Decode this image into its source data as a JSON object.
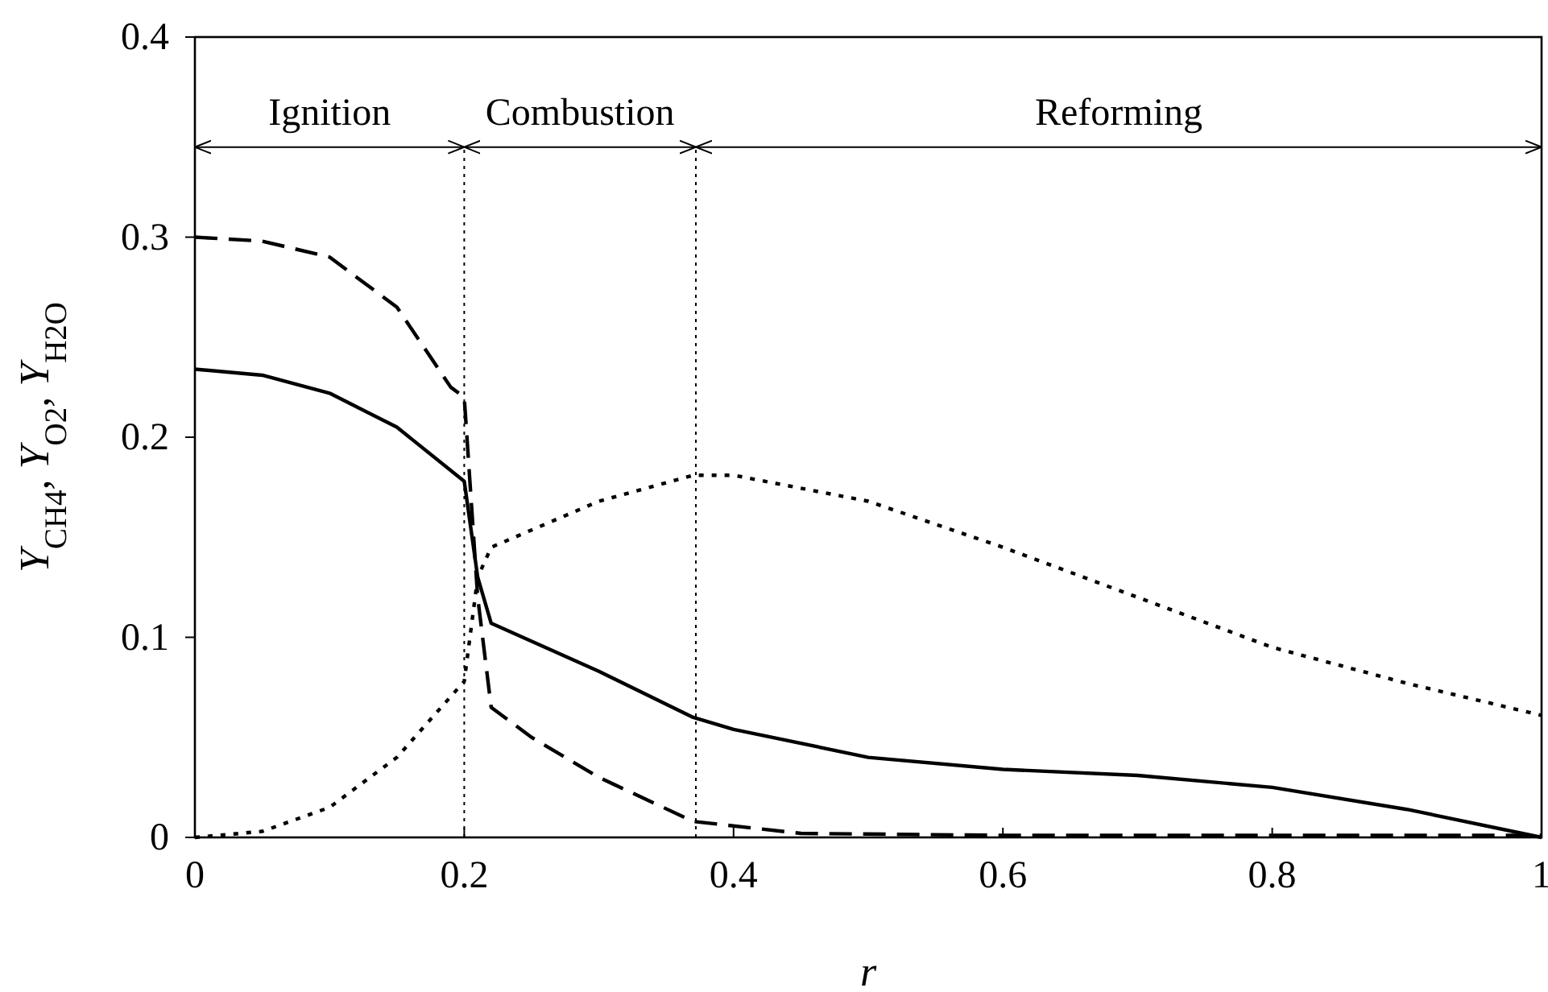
{
  "chart_data": {
    "type": "line",
    "xlabel": "r",
    "ylabel": "Y$_{CH4}$, Y$_{O2}$, Y$_{H2O}$",
    "xlim": [
      0,
      1
    ],
    "ylim": [
      0,
      0.4
    ],
    "xticks": [
      0,
      0.2,
      0.4,
      0.6,
      0.8,
      1
    ],
    "yticks": [
      0,
      0.1,
      0.2,
      0.3,
      0.4
    ],
    "grid": false,
    "marker": "none",
    "series": [
      {
        "color": "#000000",
        "line_style": "solid",
        "x": [
          0,
          0.05,
          0.1,
          0.15,
          0.2,
          0.21,
          0.22,
          0.3,
          0.37,
          0.4,
          0.5,
          0.6,
          0.7,
          0.8,
          0.9,
          1
        ],
        "values": [
          0.234,
          0.231,
          0.222,
          0.205,
          0.178,
          0.13,
          0.107,
          0.083,
          0.06,
          0.054,
          0.04,
          0.034,
          0.031,
          0.025,
          0.014,
          0
        ]
      },
      {
        "color": "#000000",
        "line_style": "dashed",
        "x": [
          0,
          0.05,
          0.1,
          0.15,
          0.19,
          0.2,
          0.21,
          0.22,
          0.25,
          0.3,
          0.37,
          0.45,
          0.6,
          1
        ],
        "values": [
          0.3,
          0.298,
          0.29,
          0.265,
          0.225,
          0.22,
          0.12,
          0.065,
          0.05,
          0.03,
          0.008,
          0.002,
          0.001,
          0.001
        ]
      },
      {
        "color": "#000000",
        "line_style": "dotted",
        "x": [
          0,
          0.05,
          0.1,
          0.15,
          0.2,
          0.21,
          0.22,
          0.3,
          0.37,
          0.4,
          0.5,
          0.6,
          0.7,
          0.8,
          0.9,
          1
        ],
        "values": [
          0,
          0.003,
          0.015,
          0.04,
          0.078,
          0.13,
          0.145,
          0.168,
          0.181,
          0.181,
          0.168,
          0.145,
          0.12,
          0.095,
          0.077,
          0.061
        ]
      }
    ],
    "ref_lines": [
      {
        "axis": "x",
        "value": 0.2,
        "color": "#000000",
        "line_style": "dotted"
      },
      {
        "axis": "x",
        "value": 0.372,
        "color": "#000000",
        "line_style": "dotted"
      }
    ],
    "annotations": [
      "Ignition",
      "Combustion",
      "Reforming"
    ]
  }
}
